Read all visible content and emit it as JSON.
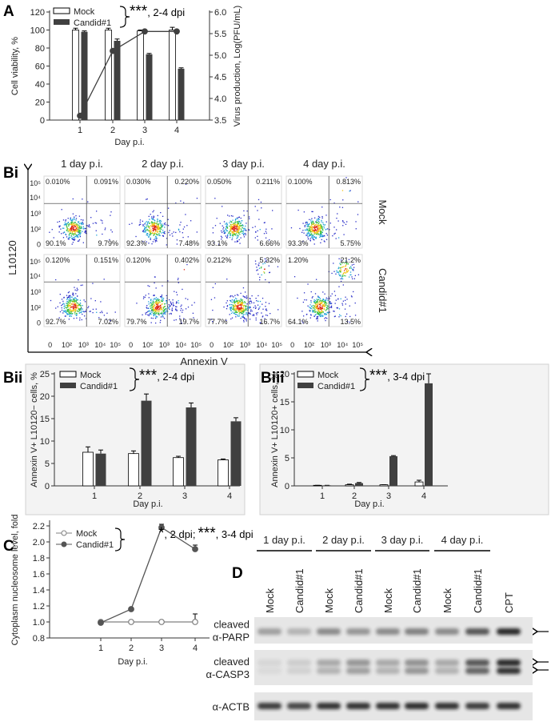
{
  "chart_data": [
    {
      "panel": "A",
      "type": "bar",
      "categories": [
        "1",
        "2",
        "3",
        "4"
      ],
      "series": [
        {
          "name": "Mock",
          "color": "#ffffff",
          "edgecolor": "#000000",
          "values": [
            100,
            100,
            99,
            100
          ],
          "errors": [
            2,
            2,
            1,
            3
          ]
        },
        {
          "name": "Candid#1",
          "color": "#404040",
          "values": [
            98,
            88,
            73,
            57
          ],
          "errors": [
            1,
            2,
            1,
            1
          ]
        },
        {
          "type": "line",
          "axis": "y2",
          "color": "#404040",
          "values": [
            3.6,
            5.1,
            5.55,
            5.55
          ]
        }
      ],
      "ylim": [
        0,
        120
      ],
      "yticks": [
        0,
        20,
        40,
        60,
        80,
        100,
        120
      ],
      "y2lim": [
        3.5,
        6.0
      ],
      "y2ticks": [
        3.5,
        {
          "value": 4,
          "label": "4.0"
        },
        4.5,
        {
          "value": 5,
          "label": "5.0"
        },
        5.5,
        {
          "value": 6,
          "label": "6.0"
        }
      ],
      "xlabel": "Day p.i.",
      "ylabel": "Cell viability, %",
      "y2label": "Virus production, Log(PFU/mL)",
      "annotation": [
        {
          "stars": "***",
          "text": ", 2-4 dpi"
        }
      ]
    },
    {
      "panel": "Bii",
      "type": "bar",
      "categories": [
        "1",
        "2",
        "3",
        "4"
      ],
      "series": [
        {
          "name": "Mock",
          "color": "#ffffff",
          "edgecolor": "#000000",
          "values": [
            7.5,
            7.2,
            6.3,
            5.8
          ],
          "errors": [
            1.2,
            0.6,
            0.3,
            0.2
          ]
        },
        {
          "name": "Candid#1",
          "color": "#404040",
          "values": [
            7.2,
            19,
            17.5,
            14.4
          ],
          "errors": [
            0.8,
            1.5,
            1,
            0.8
          ]
        }
      ],
      "ylim": [
        0,
        25
      ],
      "yticks": [
        0,
        5,
        10,
        15,
        20,
        25
      ],
      "xlabel": "Day p.i.",
      "ylabel": "Annexin V+ L10120− cells, %",
      "annotation": [
        {
          "stars": "***",
          "text": ", 2-4 dpi"
        }
      ]
    },
    {
      "panel": "Biii",
      "type": "bar",
      "categories": [
        "1",
        "2",
        "3",
        "4"
      ],
      "series": [
        {
          "name": "Mock",
          "color": "#ffffff",
          "edgecolor": "#000000",
          "values": [
            0.1,
            0.2,
            0.2,
            0.7
          ],
          "errors": [
            0,
            0.1,
            0,
            0.3
          ]
        },
        {
          "name": "Candid#1",
          "color": "#404040",
          "values": [
            0.1,
            0.5,
            5.3,
            18.3
          ],
          "errors": [
            0,
            0.1,
            0.1,
            1.7
          ]
        }
      ],
      "ylim": [
        0,
        20
      ],
      "yticks": [
        0,
        5,
        10,
        15,
        20
      ],
      "xlabel": "Day p.i.",
      "ylabel": "Annexin V+ L10120+ cells, %",
      "annotation": [
        {
          "stars": "***",
          "text": ", 3-4 dpi"
        }
      ]
    },
    {
      "panel": "C",
      "type": "line",
      "categories": [
        "1",
        "2",
        "3",
        "4"
      ],
      "series": [
        {
          "name": "Mock",
          "color": "#808080",
          "filled": false,
          "values": [
            1.0,
            1.0,
            1.0,
            1.0
          ],
          "errors": [
            0.02,
            0,
            0,
            0.1
          ]
        },
        {
          "name": "Candid#1",
          "color": "#555555",
          "filled": true,
          "values": [
            0.99,
            1.16,
            2.18,
            1.91
          ],
          "errors": [
            0.01,
            0.01,
            0.04,
            0.05
          ]
        }
      ],
      "ylim": [
        0.8,
        2.25
      ],
      "yticks": [
        0.8,
        {
          "value": 1,
          "label": "1.0"
        },
        1.2,
        1.4,
        1.6,
        1.8,
        {
          "value": 2,
          "label": "2.0"
        },
        2.2
      ],
      "xlabel": "Day p.i.",
      "ylabel": "Cytoplasm nucleosome level, fold",
      "annotation": [
        {
          "stars": "*",
          "text": ", 2 dpi; "
        },
        {
          "stars": "***",
          "text": ", 3-4 dpi"
        }
      ]
    }
  ],
  "flow": {
    "panel": "Bi",
    "columns": [
      "1 day p.i.",
      "2 day p.i.",
      "3 day p.i.",
      "4 day p.i."
    ],
    "rows": [
      "Mock",
      "Candid#1"
    ],
    "ylabel": "L10120",
    "xlabel": "Annexin V",
    "yticks": [
      "10⁵",
      "10⁴",
      "10³",
      "10²",
      "0"
    ],
    "xticks": [
      "0",
      "10²",
      "10³",
      "10⁴",
      "10⁵"
    ],
    "quadrants": [
      [
        [
          "0.010%",
          "0.091%",
          "90.1%",
          "9.79%"
        ],
        [
          "0.030%",
          "0.220%",
          "92.3%",
          "7.48%"
        ],
        [
          "0.050%",
          "0.211%",
          "93.1%",
          "6.66%"
        ],
        [
          "0.100%",
          "0.813%",
          "93.3%",
          "5.75%"
        ]
      ],
      [
        [
          "0.120%",
          "0.151%",
          "92.7%",
          "7.02%"
        ],
        [
          "0.120%",
          "0.402%",
          "79.7%",
          "19.7%"
        ],
        [
          "0.212%",
          "5.32%",
          "77.7%",
          "16.7%"
        ],
        [
          "1.20%",
          "21.2%",
          "64.1%",
          "13.5%"
        ]
      ]
    ]
  },
  "blot": {
    "panel": "D",
    "groups": [
      "1 day p.i.",
      "2 day p.i.",
      "3 day p.i.",
      "4 day p.i."
    ],
    "lanes": [
      "Mock",
      "Candid#1",
      "Mock",
      "Candid#1",
      "Mock",
      "Candid#1",
      "Mock",
      "Candid#1",
      "CPT"
    ],
    "rows": [
      [
        "cleaved",
        "α-PARP"
      ],
      [
        "cleaved",
        "α-CASP3"
      ],
      [
        "α-ACTB"
      ]
    ]
  }
}
